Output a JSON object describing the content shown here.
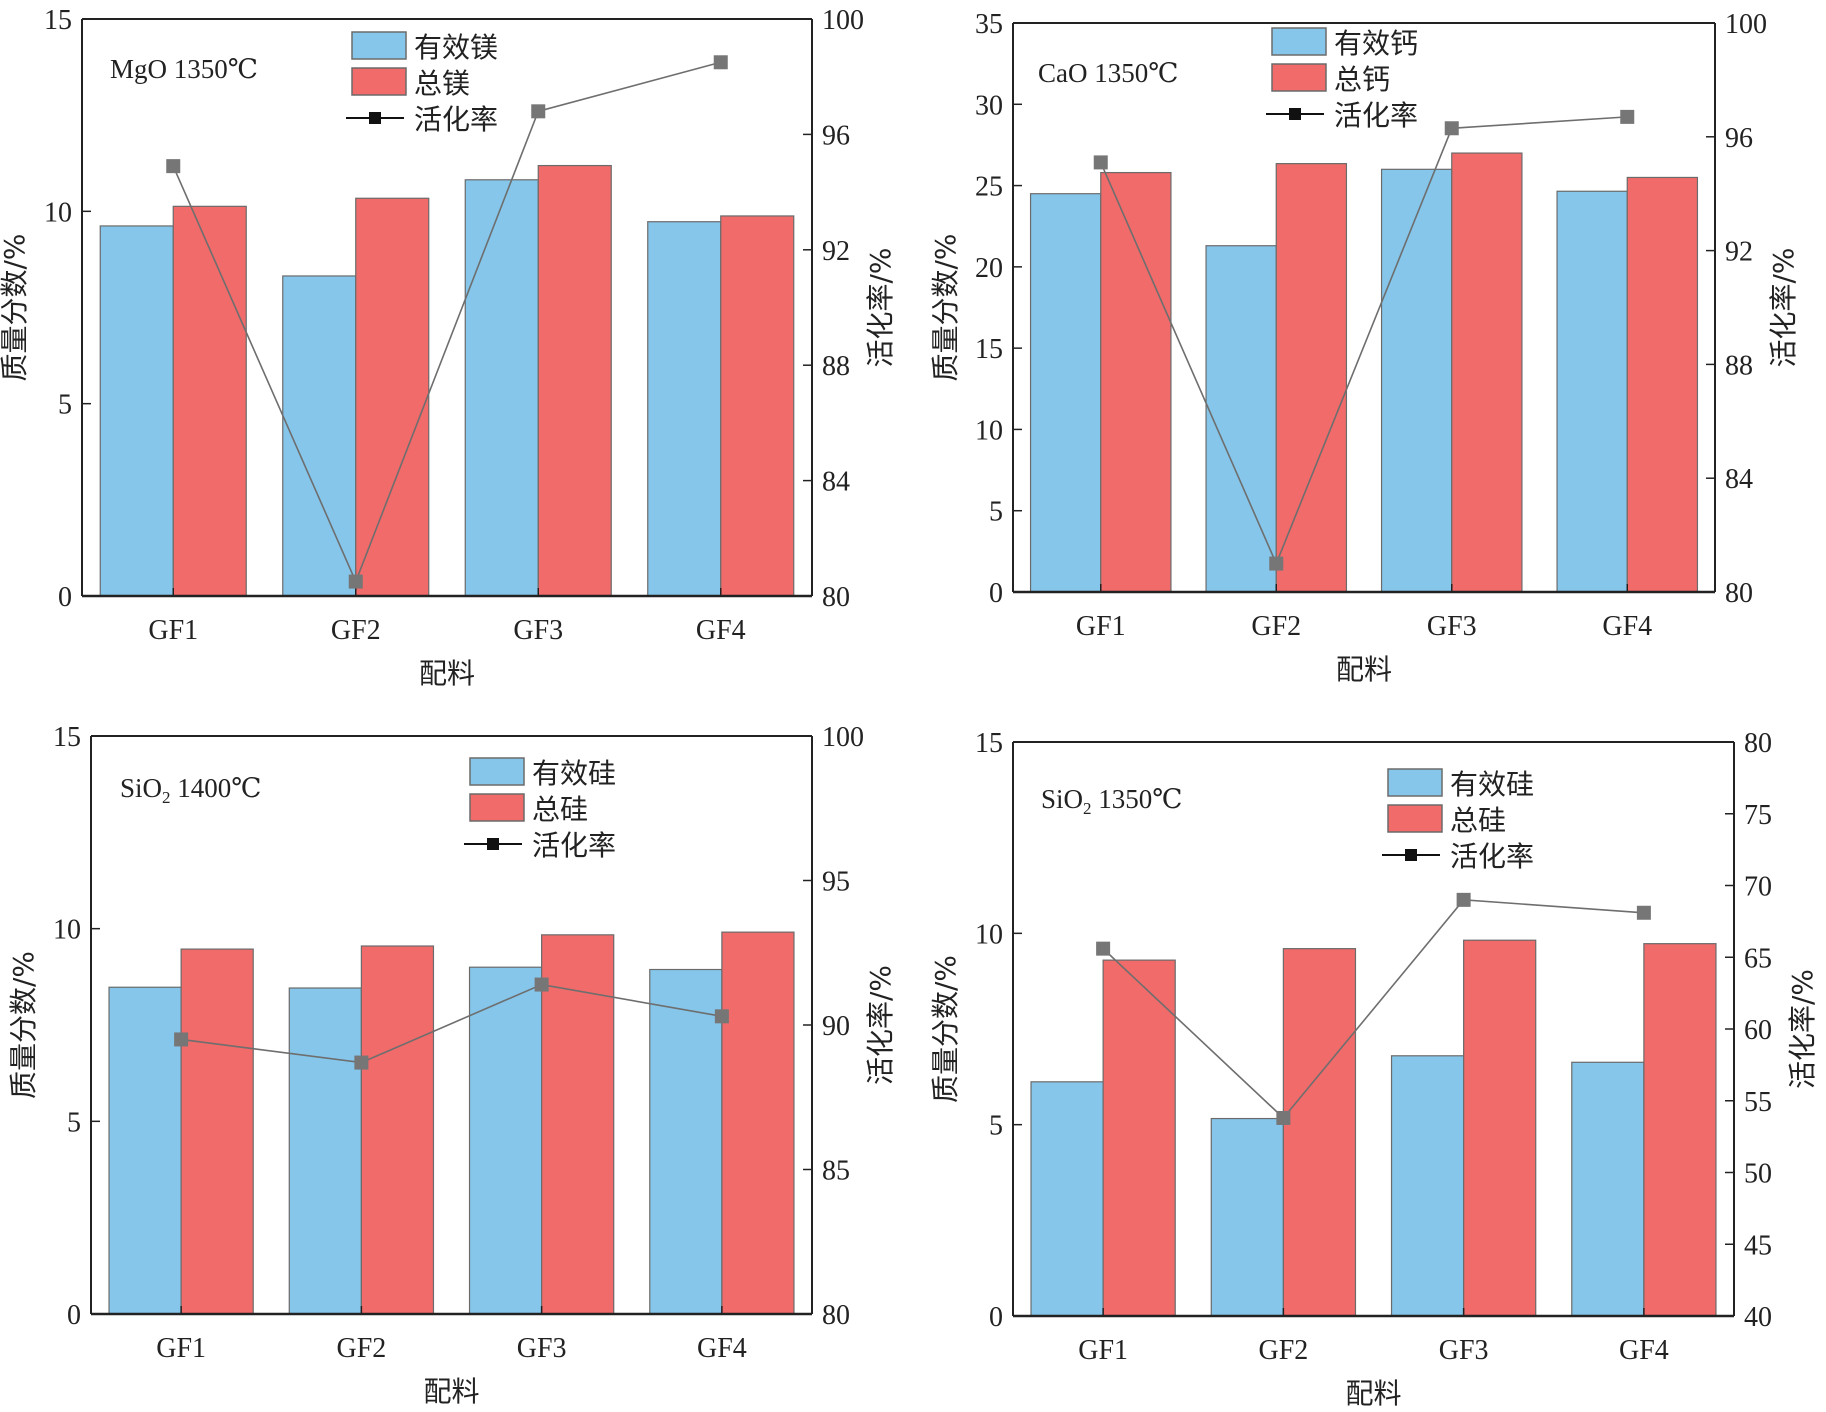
{
  "colors": {
    "effective": "#85C6EA",
    "total": "#F06B6A",
    "marker": "#767676",
    "line": "#6e6e6e",
    "axis": "#222222"
  },
  "chart_data": [
    {
      "type": "bar",
      "title": "MgO 1350℃",
      "xlabel": "配料",
      "ylabel": "质量分数/%",
      "y2label": "活化率/%",
      "categories": [
        "GF1",
        "GF2",
        "GF3",
        "GF4"
      ],
      "ylim": [
        0,
        15
      ],
      "yticks": [
        0,
        5,
        10,
        15
      ],
      "y2lim": [
        80,
        100
      ],
      "y2ticks": [
        80,
        84,
        88,
        92,
        96,
        100
      ],
      "legend": [
        "有效镁",
        "总镁",
        "活化率"
      ],
      "legend_position": "top-center",
      "series": [
        {
          "name": "有效镁",
          "type": "bar",
          "values": [
            9.62,
            8.32,
            10.82,
            9.73
          ]
        },
        {
          "name": "总镁",
          "type": "bar",
          "values": [
            10.13,
            10.34,
            11.19,
            9.88
          ]
        },
        {
          "name": "活化率",
          "type": "line",
          "axis": "right",
          "values": [
            94.9,
            80.5,
            96.8,
            98.5
          ]
        }
      ]
    },
    {
      "type": "bar",
      "title": "CaO 1350℃",
      "xlabel": "配料",
      "ylabel": "质量分数/%",
      "y2label": "活化率/%",
      "categories": [
        "GF1",
        "GF2",
        "GF3",
        "GF4"
      ],
      "ylim": [
        0,
        35
      ],
      "yticks": [
        0,
        5,
        10,
        15,
        20,
        25,
        30,
        35
      ],
      "y2lim": [
        80,
        100
      ],
      "y2ticks": [
        80,
        84,
        88,
        92,
        96,
        100
      ],
      "legend": [
        "有效钙",
        "总钙",
        "活化率"
      ],
      "legend_position": "top-center",
      "series": [
        {
          "name": "有效钙",
          "type": "bar",
          "values": [
            24.5,
            21.3,
            26.0,
            24.65
          ]
        },
        {
          "name": "总钙",
          "type": "bar",
          "values": [
            25.8,
            26.35,
            27.0,
            25.5
          ]
        },
        {
          "name": "活化率",
          "type": "line",
          "axis": "right",
          "values": [
            95.1,
            81.0,
            96.3,
            96.7
          ]
        }
      ]
    },
    {
      "type": "bar",
      "title": "SiO2 1400℃",
      "title_main": "SiO",
      "title_sub": "2",
      "title_rest": " 1400℃",
      "xlabel": "配料",
      "ylabel": "质量分数/%",
      "y2label": "活化率/%",
      "categories": [
        "GF1",
        "GF2",
        "GF3",
        "GF4"
      ],
      "ylim": [
        0,
        15
      ],
      "yticks": [
        0,
        5,
        10,
        15
      ],
      "y2lim": [
        80,
        100
      ],
      "y2ticks": [
        80,
        85,
        90,
        95,
        100
      ],
      "legend": [
        "有效硅",
        "总硅",
        "活化率"
      ],
      "legend_position": "top-right",
      "series": [
        {
          "name": "有效硅",
          "type": "bar",
          "values": [
            8.48,
            8.46,
            9.0,
            8.94
          ]
        },
        {
          "name": "总硅",
          "type": "bar",
          "values": [
            9.47,
            9.55,
            9.84,
            9.91
          ]
        },
        {
          "name": "活化率",
          "type": "line",
          "axis": "right",
          "values": [
            89.5,
            88.7,
            91.4,
            90.3
          ]
        }
      ]
    },
    {
      "type": "bar",
      "title": "SiO2 1350℃",
      "title_main": "SiO",
      "title_sub": "2",
      "title_rest": " 1350℃",
      "xlabel": "配料",
      "ylabel": "质量分数/%",
      "y2label": "活化率/%",
      "categories": [
        "GF1",
        "GF2",
        "GF3",
        "GF4"
      ],
      "ylim": [
        0,
        15
      ],
      "yticks": [
        0,
        5,
        10,
        15
      ],
      "y2lim": [
        40,
        80
      ],
      "y2ticks": [
        40,
        45,
        50,
        55,
        60,
        65,
        70,
        75,
        80
      ],
      "legend": [
        "有效硅",
        "总硅",
        "活化率"
      ],
      "legend_position": "top-right",
      "series": [
        {
          "name": "有效硅",
          "type": "bar",
          "values": [
            6.12,
            5.16,
            6.8,
            6.63
          ]
        },
        {
          "name": "总硅",
          "type": "bar",
          "values": [
            9.3,
            9.6,
            9.82,
            9.73
          ]
        },
        {
          "name": "活化率",
          "type": "line",
          "axis": "right",
          "values": [
            65.6,
            53.8,
            69.0,
            68.1
          ]
        }
      ]
    }
  ]
}
